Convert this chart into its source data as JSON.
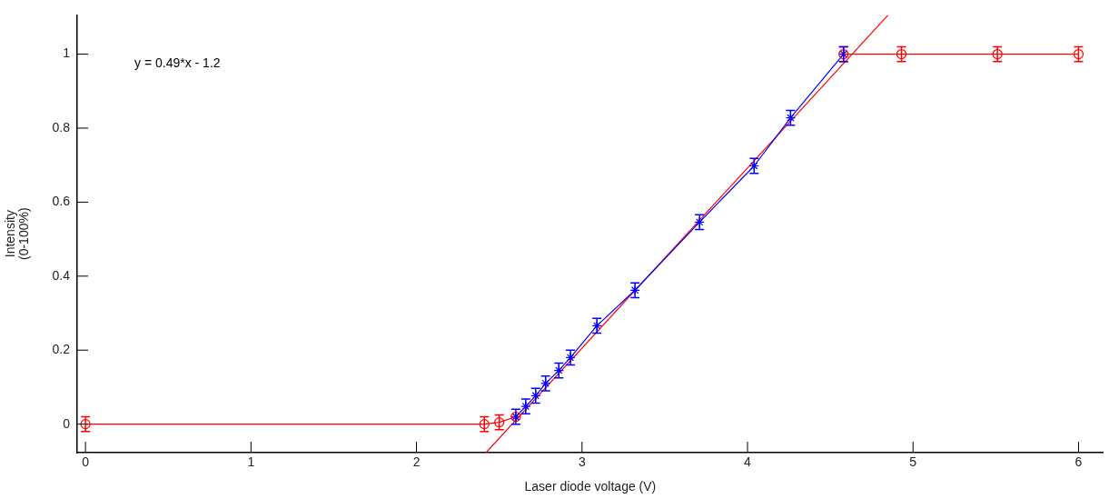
{
  "chart_data": {
    "type": "line",
    "xlabel": "Laser diode voltage (V)",
    "ylabel": "Intensity\n(0-100%)",
    "annotations": [
      "y = 0.49*x - 1.2"
    ],
    "xlim": [
      -0.05,
      6.15
    ],
    "ylim": [
      -0.077,
      1.106
    ],
    "xticks": [
      0,
      1,
      2,
      3,
      4,
      5,
      6
    ],
    "yticks": [
      0,
      0.2,
      0.4,
      0.6,
      0.8,
      1
    ],
    "grid": false,
    "legend": false,
    "line_style": "solid",
    "series": [
      {
        "color": "#ff0000",
        "marker": "circle",
        "x": [
          0,
          2.41,
          2.5,
          2.6
        ],
        "values": [
          0,
          0,
          0.005,
          0.02
        ],
        "errors": [
          0.02,
          0.02,
          0.02,
          null
        ]
      },
      {
        "color": "#ff0000",
        "marker": "circle",
        "x": [
          4.58,
          4.93,
          5.51,
          6
        ],
        "values": [
          1,
          1,
          1,
          1
        ],
        "errors": [
          0.02,
          0.02,
          0.02,
          0.02
        ]
      },
      {
        "color": "#0000ff",
        "marker": "cross",
        "x": [
          2.6,
          2.66,
          2.72,
          2.78,
          2.86,
          2.93,
          3.09,
          3.32,
          3.71,
          4.04,
          4.26,
          4.58
        ],
        "values": [
          0.02,
          0.048,
          0.077,
          0.11,
          0.145,
          0.18,
          0.266,
          0.362,
          0.546,
          0.698,
          0.828,
          1
        ],
        "errors": [
          0.02,
          0.02,
          0.02,
          0.02,
          0.02,
          0.02,
          0.02,
          0.02,
          0.02,
          0.02,
          0.02,
          0.02
        ]
      },
      {
        "color": "#ff0000",
        "marker": "none",
        "x": [
          2.42,
          4.85
        ],
        "values": [
          -0.077,
          1.106
        ]
      }
    ]
  }
}
